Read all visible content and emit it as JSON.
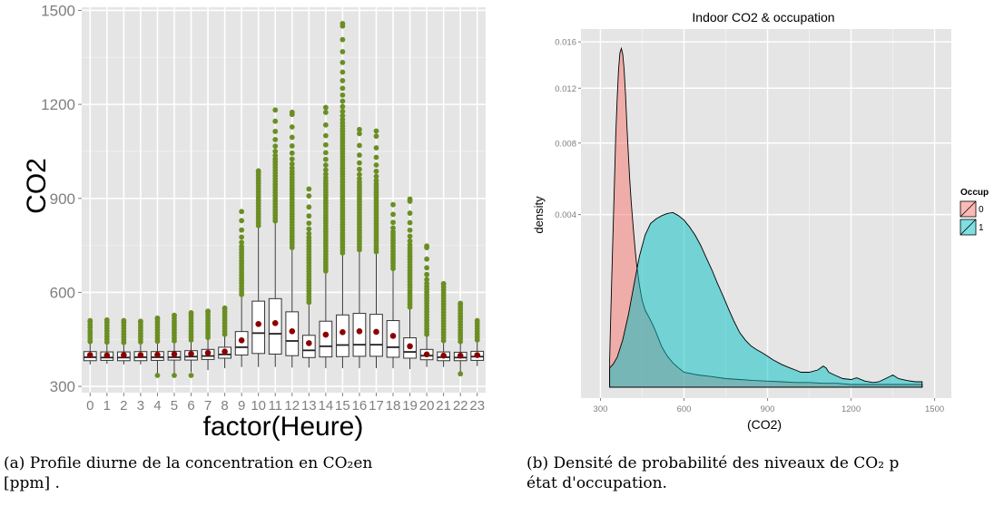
{
  "figure": {
    "caption_a": {
      "text": "(a) Profile diurne de la concentration en CO₂en",
      "text2": "[ppm] ."
    },
    "caption_b": {
      "text": "(b) Densité de probabilité des niveaux de CO₂ p",
      "text2": "état d'occupation."
    }
  },
  "colors": {
    "panel_bg": "#e5e5e5",
    "grid": "#ffffff",
    "outlier": "#6b8e23",
    "mean": "#8b0000",
    "occ0": "#f8766d",
    "occ1": "#00bfc4"
  },
  "chart_data": [
    {
      "type": "box",
      "title": "",
      "xlabel": "factor(Heure)",
      "ylabel": "CO2",
      "ylim": [
        280,
        1510
      ],
      "yticks": [
        300,
        600,
        900,
        1200,
        1500
      ],
      "categories": [
        "0",
        "1",
        "2",
        "3",
        "4",
        "5",
        "6",
        "7",
        "8",
        "9",
        "10",
        "11",
        "12",
        "13",
        "14",
        "15",
        "16",
        "17",
        "18",
        "19",
        "20",
        "21",
        "22",
        "23"
      ],
      "boxes": [
        {
          "lo": 370,
          "q1": 382,
          "med": 393,
          "q3": 411,
          "hi": 435,
          "mean": 400,
          "omax": 510
        },
        {
          "lo": 372,
          "q1": 383,
          "med": 392,
          "q3": 410,
          "hi": 433,
          "mean": 399,
          "omax": 512
        },
        {
          "lo": 370,
          "q1": 382,
          "med": 392,
          "q3": 410,
          "hi": 432,
          "mean": 400,
          "omax": 510
        },
        {
          "lo": 370,
          "q1": 382,
          "med": 393,
          "q3": 411,
          "hi": 434,
          "mean": 400,
          "omax": 508
        },
        {
          "lo": 340,
          "q1": 383,
          "med": 393,
          "q3": 411,
          "hi": 436,
          "mean": 401,
          "omax": 518,
          "omin": 335
        },
        {
          "lo": 340,
          "q1": 384,
          "med": 393,
          "q3": 412,
          "hi": 437,
          "mean": 403,
          "omax": 527,
          "omin": 335
        },
        {
          "lo": 345,
          "q1": 384,
          "med": 395,
          "q3": 414,
          "hi": 440,
          "mean": 404,
          "omax": 535,
          "omin": 335
        },
        {
          "lo": 352,
          "q1": 386,
          "med": 397,
          "q3": 418,
          "hi": 448,
          "mean": 407,
          "omax": 540
        },
        {
          "lo": 358,
          "q1": 390,
          "med": 402,
          "q3": 425,
          "hi": 458,
          "mean": 411,
          "omax": 550
        },
        {
          "lo": 362,
          "q1": 400,
          "med": 425,
          "q3": 475,
          "hi": 585,
          "mean": 447,
          "omax": 858
        },
        {
          "lo": 362,
          "q1": 405,
          "med": 470,
          "q3": 572,
          "hi": 805,
          "mean": 499,
          "omax": 988
        },
        {
          "lo": 362,
          "q1": 403,
          "med": 468,
          "q3": 580,
          "hi": 820,
          "mean": 502,
          "omax": 1182
        },
        {
          "lo": 360,
          "q1": 398,
          "med": 445,
          "q3": 538,
          "hi": 735,
          "mean": 476,
          "omax": 1175
        },
        {
          "lo": 360,
          "q1": 392,
          "med": 415,
          "q3": 463,
          "hi": 560,
          "mean": 438,
          "omax": 930
        },
        {
          "lo": 358,
          "q1": 394,
          "med": 428,
          "q3": 508,
          "hi": 660,
          "mean": 465,
          "omax": 1190
        },
        {
          "lo": 358,
          "q1": 395,
          "med": 432,
          "q3": 528,
          "hi": 718,
          "mean": 473,
          "omax": 1458
        },
        {
          "lo": 358,
          "q1": 396,
          "med": 433,
          "q3": 533,
          "hi": 728,
          "mean": 476,
          "omax": 1120
        },
        {
          "lo": 358,
          "q1": 396,
          "med": 433,
          "q3": 530,
          "hi": 722,
          "mean": 474,
          "omax": 1115
        },
        {
          "lo": 358,
          "q1": 393,
          "med": 425,
          "q3": 510,
          "hi": 668,
          "mean": 461,
          "omax": 880
        },
        {
          "lo": 355,
          "q1": 390,
          "med": 410,
          "q3": 455,
          "hi": 545,
          "mean": 428,
          "omax": 898
        },
        {
          "lo": 362,
          "q1": 385,
          "med": 398,
          "q3": 418,
          "hi": 458,
          "mean": 402,
          "omax": 748
        },
        {
          "lo": 362,
          "q1": 382,
          "med": 393,
          "q3": 410,
          "hi": 438,
          "mean": 398,
          "omax": 628
        },
        {
          "lo": 348,
          "q1": 382,
          "med": 392,
          "q3": 409,
          "hi": 435,
          "mean": 398,
          "omax": 565,
          "omin": 340
        },
        {
          "lo": 365,
          "q1": 383,
          "med": 395,
          "q3": 412,
          "hi": 440,
          "mean": 400,
          "omax": 510
        }
      ]
    },
    {
      "type": "area",
      "title": "Indoor CO2 & occupation",
      "xlabel": "(CO2)",
      "ylabel": "density",
      "xlim": [
        230,
        1560
      ],
      "xticks": [
        300,
        600,
        900,
        1200,
        1500
      ],
      "yticks": [
        0.004,
        0.008,
        0.012,
        0.016
      ],
      "y_scale": "sqrt",
      "legend": {
        "title": "Occup",
        "position": "right"
      },
      "series": [
        {
          "name": "0",
          "x": [
            333,
            336,
            340,
            345,
            350,
            355,
            360,
            365,
            370,
            375,
            380,
            385,
            390,
            395,
            400,
            405,
            410,
            415,
            420,
            425,
            430,
            440,
            450,
            460,
            470,
            480,
            490,
            500,
            520,
            540,
            560,
            580,
            600,
            650,
            700,
            750,
            800,
            850,
            900,
            950,
            1000,
            1050,
            1100,
            1150,
            1200,
            1250,
            1300,
            1350,
            1400,
            1450,
            1455
          ],
          "y": [
            0.0001,
            0.0005,
            0.0014,
            0.0032,
            0.0055,
            0.0085,
            0.0112,
            0.0135,
            0.015,
            0.0154,
            0.0149,
            0.0136,
            0.0115,
            0.0092,
            0.0073,
            0.0058,
            0.0047,
            0.0038,
            0.0031,
            0.0025,
            0.002,
            0.0014,
            0.001,
            0.0008,
            0.0007,
            0.0006,
            0.0005,
            0.0004,
            0.00022,
            0.00013,
            8e-05,
            5e-05,
            3e-05,
            2e-05,
            1.5e-05,
            1e-05,
            8e-06,
            6e-06,
            5e-06,
            4e-06,
            3e-06,
            3e-06,
            2e-06,
            2e-06,
            1e-06,
            1e-06,
            1e-06,
            1e-06,
            1e-06,
            1e-06,
            1e-06
          ]
        },
        {
          "name": "1",
          "x": [
            333,
            345,
            360,
            380,
            400,
            420,
            440,
            460,
            480,
            500,
            520,
            540,
            560,
            580,
            600,
            620,
            640,
            660,
            680,
            700,
            720,
            740,
            760,
            780,
            800,
            820,
            840,
            860,
            880,
            900,
            920,
            950,
            980,
            1000,
            1020,
            1050,
            1080,
            1100,
            1110,
            1120,
            1140,
            1170,
            1200,
            1220,
            1250,
            1280,
            1300,
            1330,
            1350,
            1370,
            1400,
            1430,
            1455
          ],
          "y": [
            5e-05,
            7e-05,
            0.00012,
            0.0003,
            0.0007,
            0.0014,
            0.0023,
            0.0031,
            0.0036,
            0.0038,
            0.00395,
            0.00405,
            0.0041,
            0.00395,
            0.00375,
            0.00345,
            0.0031,
            0.0027,
            0.00225,
            0.00185,
            0.00145,
            0.00112,
            0.00082,
            0.00058,
            0.0004,
            0.0003,
            0.00023,
            0.00019,
            0.00016,
            0.00013,
            0.0001,
            7e-05,
            5e-05,
            4e-05,
            3e-05,
            3e-05,
            4e-05,
            6e-05,
            5e-05,
            3e-05,
            2e-05,
            1e-05,
            8e-06,
            1.2e-05,
            5e-06,
            3e-06,
            4e-06,
            1.2e-05,
            2e-05,
            1e-05,
            6e-06,
            4e-06,
            4e-06
          ]
        }
      ]
    }
  ]
}
